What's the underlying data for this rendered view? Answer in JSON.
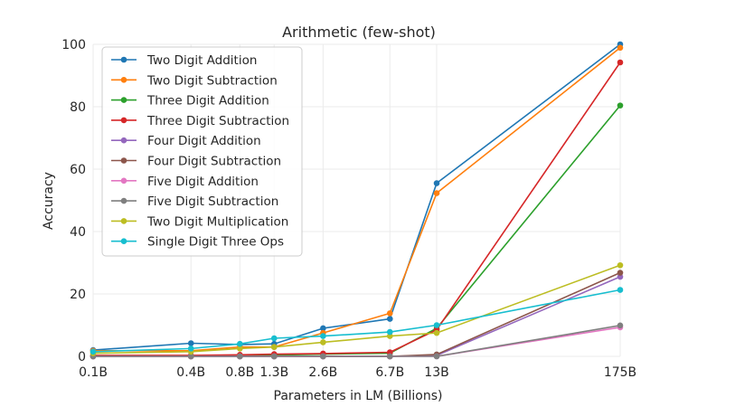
{
  "chart_data": {
    "type": "line",
    "title": "Arithmetic (few-shot)",
    "xlabel": "Parameters in LM (Billions)",
    "ylabel": "Accuracy",
    "x": [
      0.1,
      0.4,
      0.8,
      1.3,
      2.6,
      6.7,
      13,
      175
    ],
    "x_tick_labels": [
      "0.1B",
      "0.4B",
      "0.8B",
      "1.3B",
      "2.6B",
      "6.7B",
      "13B",
      "175B"
    ],
    "x_scale": "log",
    "ylim": [
      0,
      100
    ],
    "y_ticks": [
      0,
      20,
      40,
      60,
      80,
      100
    ],
    "grid": true,
    "legend_position": "top-left",
    "series": [
      {
        "name": "Two Digit Addition",
        "color": "#1f77b4",
        "values": [
          2.0,
          4.2,
          3.8,
          4.0,
          9.0,
          12.0,
          55.5,
          100.0
        ]
      },
      {
        "name": "Two Digit Subtraction",
        "color": "#ff7f0e",
        "values": [
          1.8,
          1.8,
          3.0,
          3.0,
          7.5,
          13.8,
          52.3,
          98.9
        ]
      },
      {
        "name": "Three Digit Addition",
        "color": "#2ca02c",
        "values": [
          0.2,
          0.2,
          0.3,
          0.4,
          0.7,
          1.0,
          9.0,
          80.4
        ]
      },
      {
        "name": "Three Digit Subtraction",
        "color": "#d62728",
        "values": [
          0.3,
          0.3,
          0.5,
          0.7,
          0.9,
          1.3,
          8.5,
          94.2
        ]
      },
      {
        "name": "Four Digit Addition",
        "color": "#9467bd",
        "values": [
          0.0,
          0.0,
          0.0,
          0.0,
          0.0,
          0.0,
          0.3,
          25.5
        ]
      },
      {
        "name": "Four Digit Subtraction",
        "color": "#8c564b",
        "values": [
          0.0,
          0.0,
          0.0,
          0.0,
          0.0,
          0.0,
          0.6,
          26.8
        ]
      },
      {
        "name": "Five Digit Addition",
        "color": "#e377c2",
        "values": [
          0.0,
          0.0,
          0.0,
          0.0,
          0.0,
          0.0,
          0.0,
          9.3
        ]
      },
      {
        "name": "Five Digit Subtraction",
        "color": "#7f7f7f",
        "values": [
          0.0,
          0.0,
          0.0,
          0.0,
          0.0,
          0.0,
          0.0,
          9.9
        ]
      },
      {
        "name": "Two Digit Multiplication",
        "color": "#bcbd22",
        "values": [
          1.0,
          1.5,
          2.5,
          3.0,
          4.5,
          6.5,
          7.5,
          29.2
        ]
      },
      {
        "name": "Single Digit Three Ops",
        "color": "#17becf",
        "values": [
          1.5,
          2.5,
          4.0,
          5.8,
          6.5,
          7.8,
          10.0,
          21.3
        ]
      }
    ]
  }
}
